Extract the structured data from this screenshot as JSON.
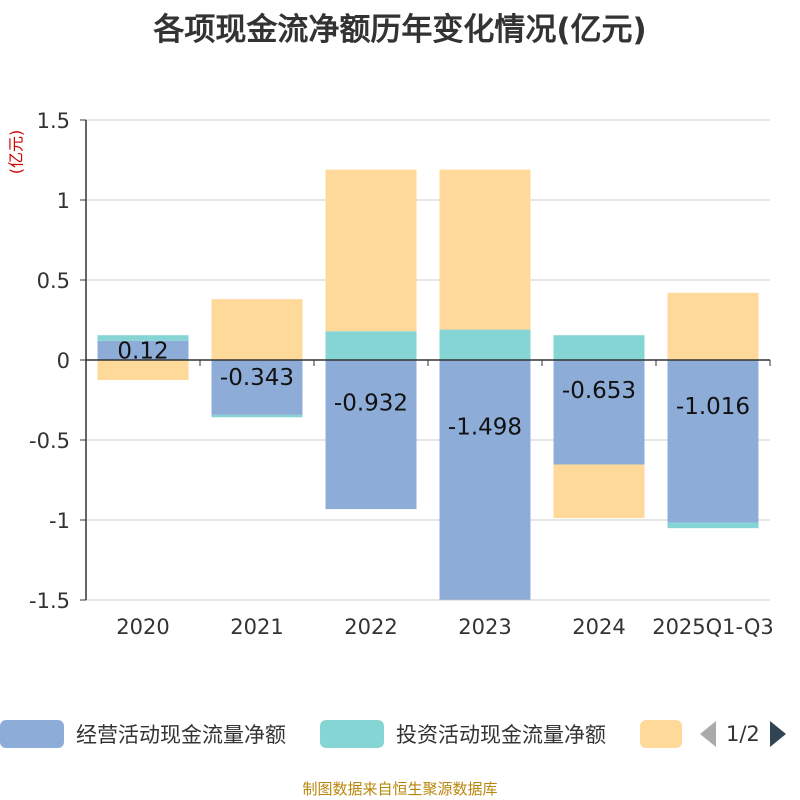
{
  "title": "各项现金流净额历年变化情况(亿元)",
  "unit_label": "(亿元)",
  "source": "制图数据来自恒生聚源数据库",
  "pager": {
    "text": "1/2"
  },
  "chart_data": {
    "type": "bar",
    "stacked": true,
    "title": "各项现金流净额历年变化情况(亿元)",
    "ylabel": "(亿元)",
    "ylim": [
      -1.5,
      1.5
    ],
    "yticks": [
      1.5,
      1,
      0.5,
      0,
      -0.5,
      -1,
      -1.5
    ],
    "ytick_labels": [
      "1.5",
      "1",
      "0.5",
      "0",
      "-0.5",
      "-1",
      "-1.5"
    ],
    "categories": [
      "2020",
      "2021",
      "2022",
      "2023",
      "2024",
      "2025Q1-Q3"
    ],
    "series": [
      {
        "name": "经营活动现金流量净额",
        "color": "#8eacd8",
        "values": [
          0.12,
          -0.343,
          -0.932,
          -1.498,
          -0.653,
          -1.016
        ],
        "labels": [
          "0.12",
          "-0.343",
          "-0.932",
          "-1.498",
          "-0.653",
          "-1.016"
        ]
      },
      {
        "name": "投资活动现金流量净额",
        "color": "#86d5d5",
        "values": [
          0.035,
          -0.015,
          0.18,
          0.19,
          0.155,
          -0.035
        ]
      },
      {
        "name": "",
        "color": "#ffd99a",
        "values": [
          -0.125,
          0.38,
          1.01,
          1.0,
          -0.335,
          0.42
        ]
      }
    ]
  }
}
